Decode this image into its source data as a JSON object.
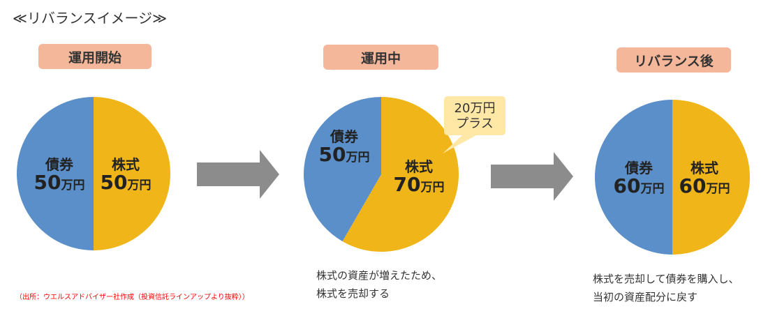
{
  "title": "≪リバランスイメージ≫",
  "colors": {
    "bond": "#5b8fc9",
    "stock": "#f0b619",
    "label_bg": "#f4b79a",
    "callout_bg": "#ffe7a6",
    "arrow": "#8c8c8c",
    "source_text": "#ff0000"
  },
  "stages": [
    {
      "label": "運用開始",
      "bond": {
        "name": "債券",
        "amount": "50",
        "unit": "万円",
        "value": 50
      },
      "stock": {
        "name": "株式",
        "amount": "50",
        "unit": "万円",
        "value": 50
      }
    },
    {
      "label": "運用中",
      "bond": {
        "name": "債券",
        "amount": "50",
        "unit": "万円",
        "value": 50
      },
      "stock": {
        "name": "株式",
        "amount": "70",
        "unit": "万円",
        "value": 70
      },
      "callout": {
        "line1": "20万円",
        "line2": "プラス"
      },
      "caption": {
        "line1": "株式の資産が増えたため、",
        "line2": "株式を売却する"
      }
    },
    {
      "label": "リバランス後",
      "bond": {
        "name": "債券",
        "amount": "60",
        "unit": "万円",
        "value": 60
      },
      "stock": {
        "name": "株式",
        "amount": "60",
        "unit": "万円",
        "value": 60
      },
      "caption": {
        "line1": "株式を売却して債券を購入し、",
        "line2": "当初の資産配分に戻す"
      }
    }
  ],
  "source": "（出所：ウエルスアドバイザー社作成（投資信託ラインアップより抜粋））"
}
